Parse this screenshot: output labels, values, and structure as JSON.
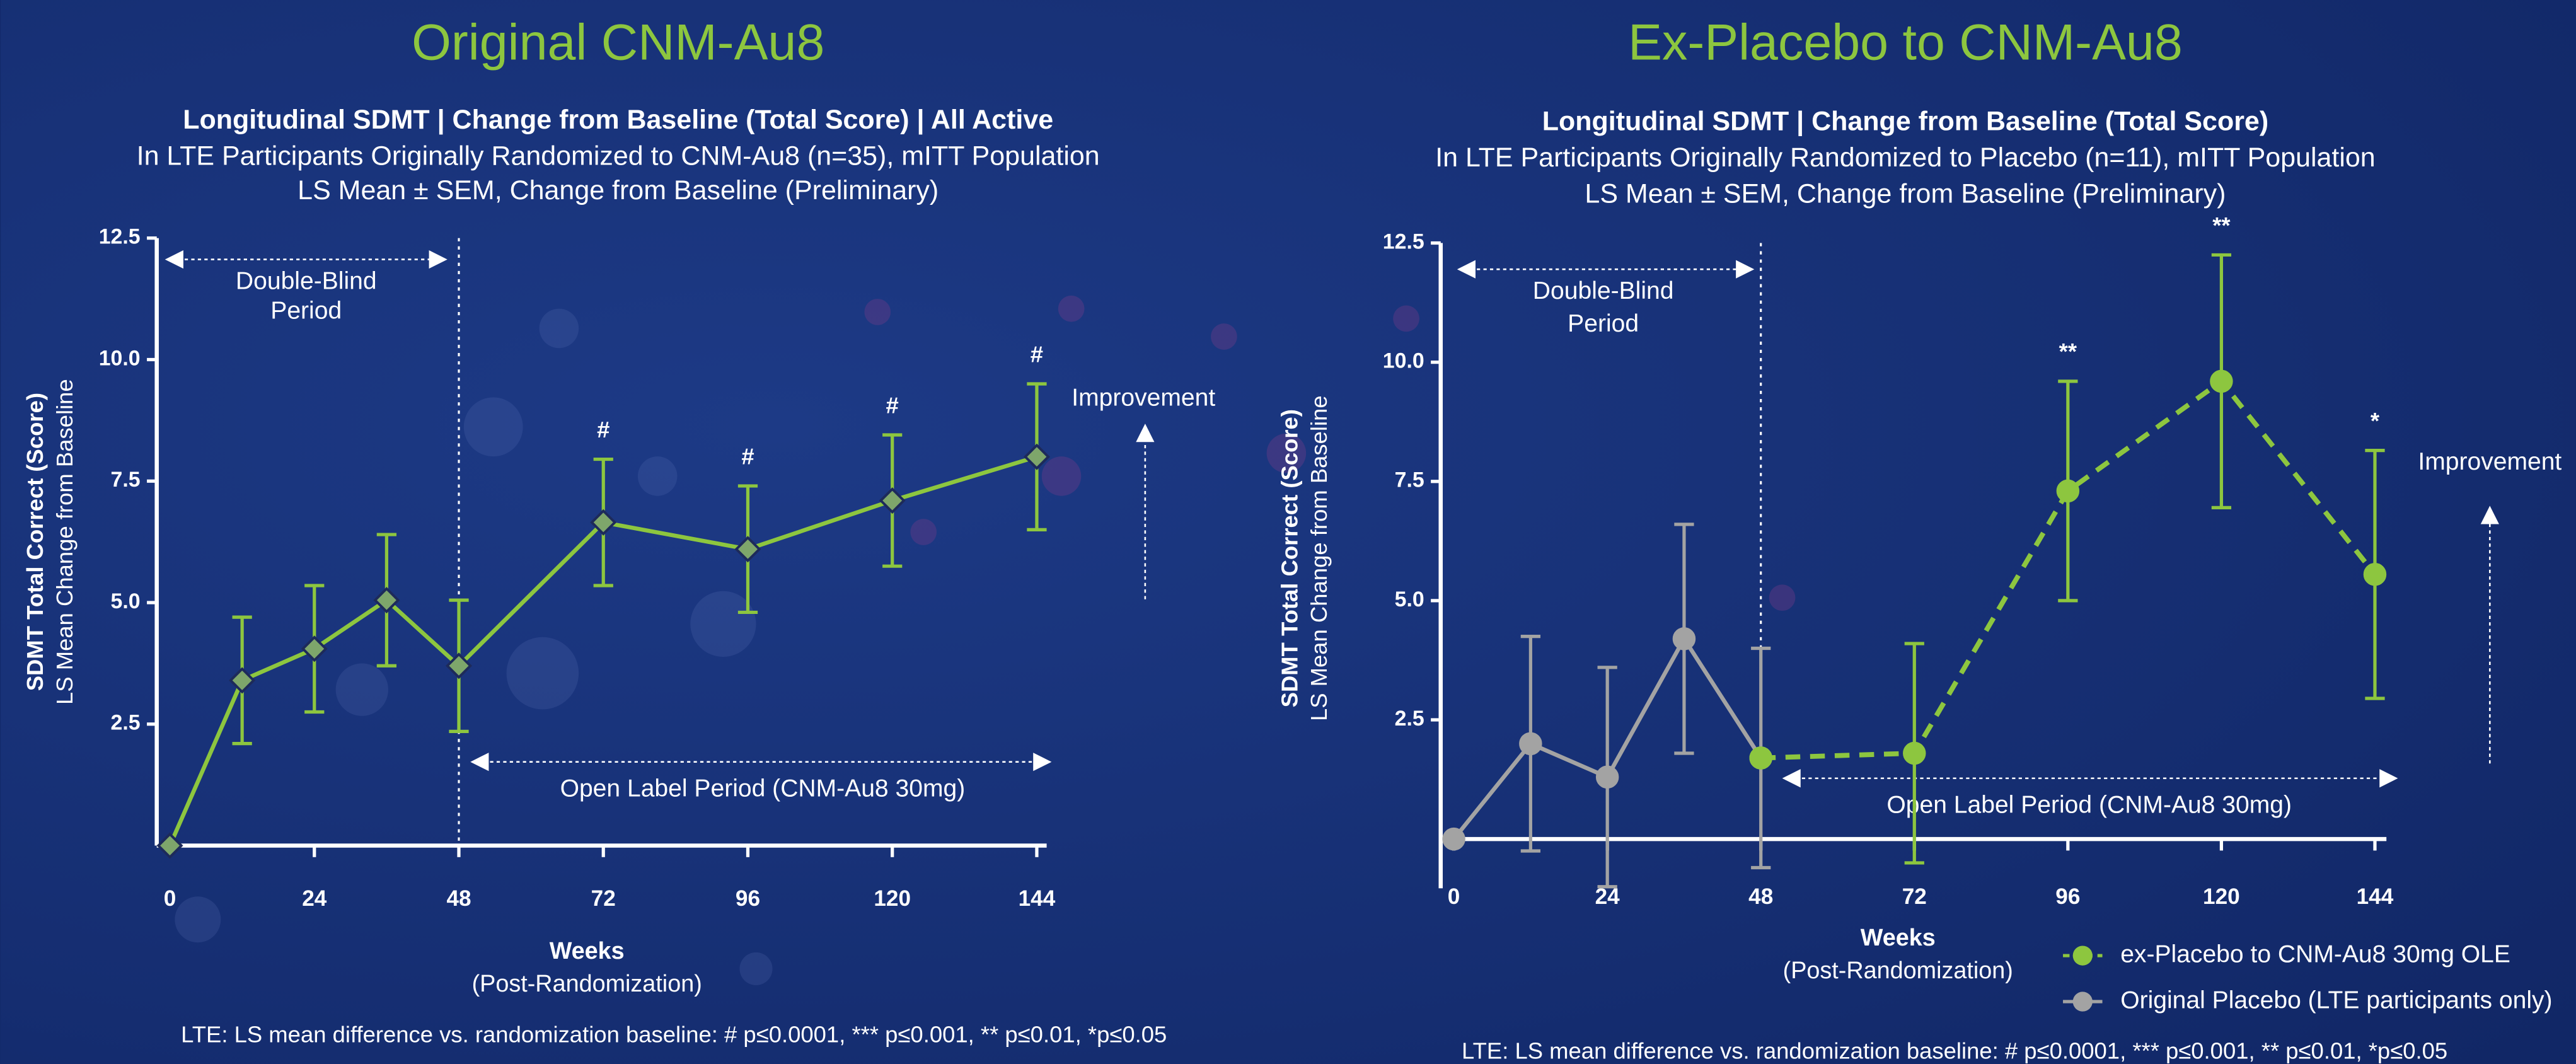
{
  "chart_data": [
    {
      "type": "line",
      "title": "Original CNM-Au8",
      "subtitle": [
        "Longitudinal SDMT | Change from Baseline (Total Score) | All Active",
        "In LTE Participants Originally Randomized to CNM-Au8 (n=35), mITT Population",
        "LS Mean ± SEM, Change from Baseline (Preliminary)"
      ],
      "ylabel": [
        "SDMT Total Correct (Score)",
        "LS Mean Change from Baseline"
      ],
      "xlabel": [
        "Weeks",
        "(Post-Randomization)"
      ],
      "double_blind_label": [
        "Double-Blind",
        "Period"
      ],
      "open_label": "Open Label Period (CNM-Au8 30mg)",
      "improvement": "Improvement",
      "footnote": "LTE: LS mean difference vs. randomization baseline: # p≤0.0001,  *** p≤0.001, ** p≤0.01, *p≤0.05",
      "xlim": [
        0,
        144
      ],
      "xticks": [
        0,
        24,
        48,
        72,
        96,
        120,
        144
      ],
      "ylim": [
        0,
        12.5
      ],
      "yticks": [
        2.5,
        {
          "value": 5,
          "label": "5.0"
        },
        7.5,
        {
          "value": 10,
          "label": "10.0"
        },
        12.5
      ],
      "series": [
        {
          "color": "#8dc63f",
          "marker": "diamond",
          "dashed": false,
          "x": [
            0,
            12,
            24,
            36,
            48,
            72,
            96,
            120,
            144
          ],
          "values": [
            0,
            3.4,
            4.05,
            5.05,
            3.7,
            6.65,
            6.1,
            7.1,
            8.0
          ],
          "errors": [
            0,
            1.3,
            1.3,
            1.35,
            1.35,
            1.3,
            1.3,
            1.35,
            1.5
          ],
          "markers": [
            null,
            null,
            null,
            null,
            null,
            "#",
            "#",
            "#",
            "#"
          ]
        }
      ]
    },
    {
      "type": "line",
      "title": "Ex-Placebo to CNM-Au8",
      "subtitle": [
        "Longitudinal SDMT | Change from Baseline (Total Score)",
        "In LTE Participants Originally Randomized to Placebo (n=11), mITT Population",
        "LS Mean ± SEM, Change from Baseline (Preliminary)"
      ],
      "ylabel": [
        "SDMT Total Correct (Score)",
        "LS Mean Change from Baseline"
      ],
      "xlabel": [
        "Weeks",
        "(Post-Randomization)"
      ],
      "double_blind_label": [
        "Double-Blind",
        "Period"
      ],
      "open_label": "Open Label Period (CNM-Au8 30mg)",
      "improvement": "Improvement",
      "footnote": "LTE: LS mean difference vs. randomization baseline: # p≤0.0001,  *** p≤0.001, ** p≤0.01, *p≤0.05",
      "xlim": [
        0,
        144
      ],
      "xticks": [
        0,
        24,
        48,
        72,
        96,
        120,
        144
      ],
      "ylim": [
        0,
        12.5
      ],
      "yticks": [
        2.5,
        {
          "value": 5,
          "label": "5.0"
        },
        7.5,
        {
          "value": 10,
          "label": "10.0"
        },
        12.5
      ],
      "legend": "bottom-right",
      "series": [
        {
          "name": "ex-Placebo to CNM-Au8 30mg OLE",
          "color": "#8dc63f",
          "marker": "circle",
          "dashed": true,
          "x": [
            48,
            72,
            96,
            120,
            144
          ],
          "values": [
            1.7,
            1.8,
            7.3,
            9.6,
            5.55
          ],
          "errors": [
            null,
            2.3,
            2.3,
            2.65,
            2.6
          ],
          "markers": [
            null,
            null,
            "**",
            "**",
            "*"
          ]
        },
        {
          "name": "Original Placebo (LTE participants only)",
          "color": "#a3a3a3",
          "marker": "circle",
          "dashed": false,
          "x": [
            0,
            12,
            24,
            36,
            48
          ],
          "values": [
            0,
            2.0,
            1.3,
            4.2,
            1.7
          ],
          "errors": [
            0,
            2.25,
            2.3,
            2.4,
            2.3
          ],
          "markers": [
            null,
            null,
            null,
            null,
            null
          ]
        }
      ]
    }
  ]
}
